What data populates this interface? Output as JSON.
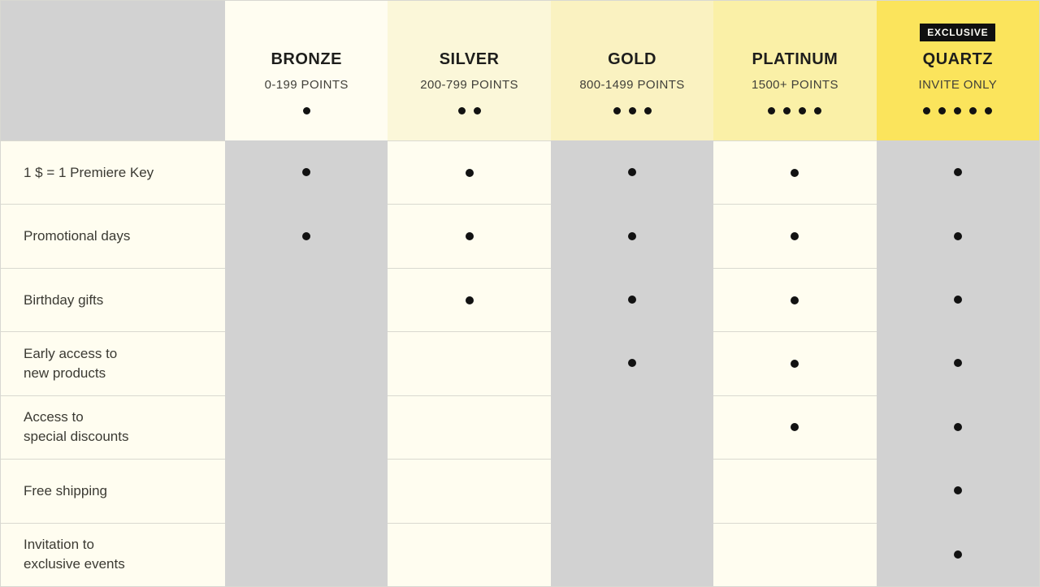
{
  "table": {
    "tiers": [
      {
        "name": "BRONZE",
        "requirement": "0-199 POINTS",
        "dots": 1,
        "header_bg": "#FFFDF1"
      },
      {
        "name": "SILVER",
        "requirement": "200-799 POINTS",
        "dots": 2,
        "header_bg": "#FBF7D9"
      },
      {
        "name": "GOLD",
        "requirement": "800-1499 POINTS",
        "dots": 3,
        "header_bg": "#FAF2C1"
      },
      {
        "name": "PLATINUM",
        "requirement": "1500+ POINTS",
        "dots": 4,
        "header_bg": "#FAF0A7"
      },
      {
        "name": "QUARTZ",
        "requirement": "INVITE ONLY",
        "dots": 5,
        "header_bg": "#FBE45C",
        "badge": "EXCLUSIVE"
      }
    ],
    "benefits": [
      {
        "label": "1 $ = 1 Premiere Key",
        "included": [
          true,
          true,
          true,
          true,
          true
        ]
      },
      {
        "label": "Promotional days",
        "included": [
          true,
          true,
          true,
          true,
          true
        ]
      },
      {
        "label": "Birthday gifts",
        "included": [
          false,
          true,
          true,
          true,
          true
        ]
      },
      {
        "label": "Early access to\nnew products",
        "included": [
          false,
          false,
          true,
          true,
          true
        ]
      },
      {
        "label": "Access to\nspecial discounts",
        "included": [
          false,
          false,
          false,
          true,
          true
        ]
      },
      {
        "label": "Free shipping",
        "included": [
          false,
          false,
          false,
          false,
          true
        ]
      },
      {
        "label": "Invitation to\nexclusive events",
        "included": [
          false,
          false,
          false,
          false,
          true
        ]
      }
    ]
  },
  "colors": {
    "gray": "#D2D2D2",
    "cream": "#FFFDF0",
    "divider": "#D9D9D0",
    "dot": "#121212",
    "badge_bg": "#101010",
    "badge_text": "#FFFEF8",
    "tier_name_text": "#1E1E1C",
    "secondary_text": "#41403A",
    "label_text": "#3B3A33"
  }
}
